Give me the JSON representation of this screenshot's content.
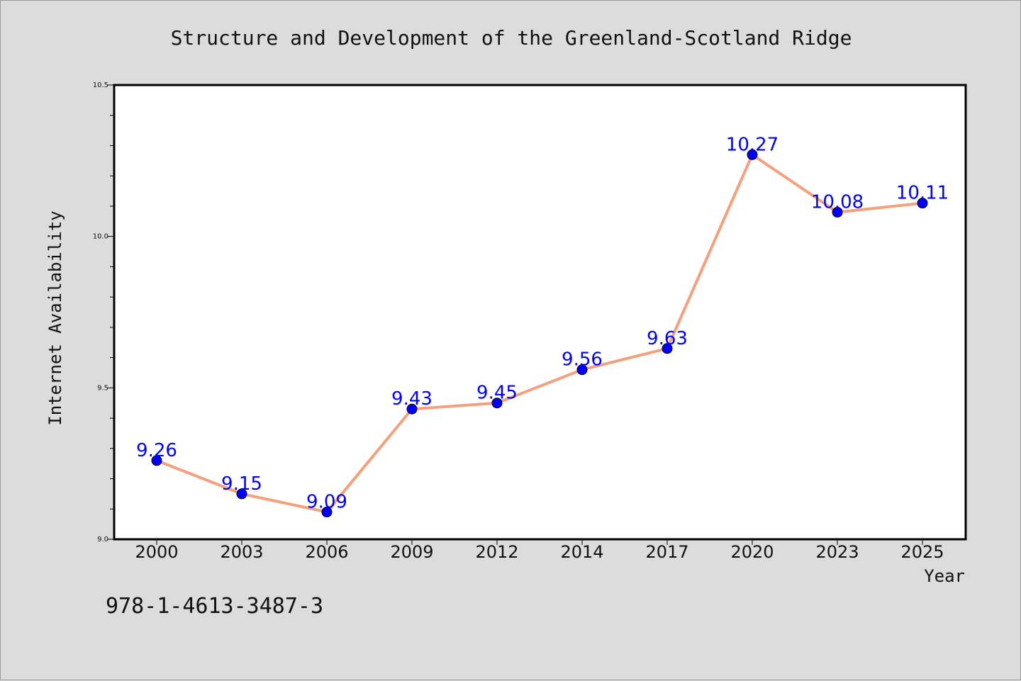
{
  "chart_data": {
    "type": "line",
    "title": "Structure and Development of the Greenland-Scotland Ridge",
    "xlabel": "Year",
    "ylabel": "Internet Availability",
    "categories": [
      "2000",
      "2003",
      "2006",
      "2009",
      "2012",
      "2014",
      "2017",
      "2020",
      "2023",
      "2025"
    ],
    "series": [
      {
        "values": [
          9.26,
          9.15,
          9.09,
          9.43,
          9.45,
          9.56,
          9.63,
          10.27,
          10.08,
          10.11
        ],
        "line_color": "#f4a07c",
        "marker_color": "#0000ff"
      }
    ],
    "data_labels": [
      "9.26",
      "9.15",
      "9.09",
      "9.43",
      "9.45",
      "9.56",
      "9.63",
      "10.27",
      "10.08",
      "10.11"
    ],
    "ylim": [
      9.0,
      10.5
    ],
    "yticks": [
      "9.0",
      "9.5",
      "10.0",
      "10.5"
    ],
    "grid": false,
    "legend": "none"
  },
  "footer": {
    "isbn": "978-1-4613-3487-3"
  }
}
